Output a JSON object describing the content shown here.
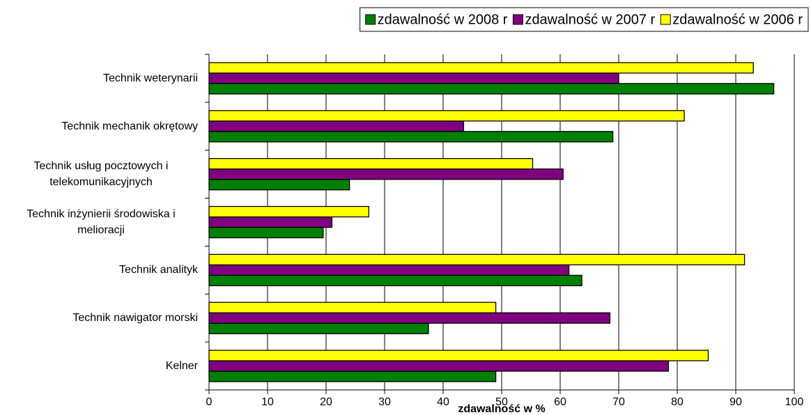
{
  "chart_data": {
    "type": "barh",
    "xlabel": "zdawalność w %",
    "categories": [
      "Technik weterynarii",
      "Technik mechanik okrętowy",
      "Technik usług pocztowych i telekomunikacyjnych",
      "Technik inżynierii środowiska i melioracji",
      "Technik analityk",
      "Technik nawigator morski",
      "Kelner"
    ],
    "series": [
      {
        "name": "zdawalność w 2008 r",
        "color": "#008000",
        "values": [
          96.5,
          69,
          24,
          19.5,
          63.7,
          37.5,
          49
        ]
      },
      {
        "name": "zdawalność w 2007 r",
        "color": "#800080",
        "values": [
          70,
          43.5,
          60.5,
          21,
          61.5,
          68.5,
          78.5
        ]
      },
      {
        "name": "zdawalność w 2006 r",
        "color": "#ffff00",
        "values": [
          93,
          81.2,
          55.3,
          27.3,
          91.5,
          49,
          85.3
        ]
      }
    ],
    "xlim": [
      0,
      100
    ],
    "xticks": [
      0,
      10,
      20,
      30,
      40,
      50,
      60,
      70,
      80,
      90,
      100
    ],
    "grid": true,
    "legend": "top"
  }
}
